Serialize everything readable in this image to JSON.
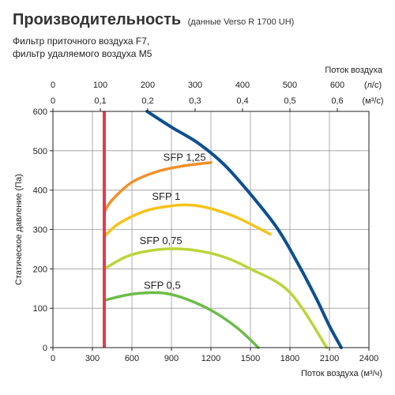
{
  "header": {
    "title": "Производительность",
    "note": "(данные Verso R 1700 UH)",
    "subtitle_line1": "Фильтр приточного воздуха F7,",
    "subtitle_line2": "фильтр удаляемого воздуха M5"
  },
  "chart_data": {
    "type": "line",
    "title": "Производительность",
    "xlabel": "Поток воздуха (м³/ч)",
    "ylabel": "Статическое давление (Па)",
    "xlim": [
      0,
      2400
    ],
    "ylim": [
      0,
      600
    ],
    "x_ticks": [
      "0",
      "300",
      "600",
      "900",
      "1200",
      "1500",
      "1800",
      "2100",
      "2400"
    ],
    "y_ticks": [
      "0",
      "100",
      "200",
      "300",
      "400",
      "500",
      "600"
    ],
    "top_axis": {
      "label": "Поток воздуха",
      "ls_ticks": [
        "0",
        "100",
        "200",
        "300",
        "400",
        "500",
        "600"
      ],
      "ls_unit": "(л/с)",
      "m3s_ticks": [
        "0",
        "0,1",
        "0,2",
        "0,3",
        "0,4",
        "0,5",
        "0,6"
      ],
      "m3s_unit": "(м³/с)"
    },
    "grid": true,
    "colors": {
      "max_curve": "#0d4f92",
      "min_line": "#e8384f",
      "sfp_125": "#f0902a",
      "sfp_1": "#f7c218",
      "sfp_075": "#bcd43a",
      "sfp_05": "#6cbc48"
    },
    "series": [
      {
        "key": "max_curve",
        "values": [
          [
            715,
            600
          ],
          [
            900,
            560
          ],
          [
            1100,
            520
          ],
          [
            1300,
            465
          ],
          [
            1500,
            390
          ],
          [
            1700,
            305
          ],
          [
            1850,
            220
          ],
          [
            2000,
            125
          ],
          [
            2100,
            55
          ],
          [
            2190,
            0
          ]
        ]
      },
      {
        "key": "min_line",
        "values": [
          [
            390,
            0
          ],
          [
            390,
            600
          ]
        ]
      },
      {
        "key": "sfp_125",
        "name": "SFP 1,25",
        "values": [
          [
            390,
            345
          ],
          [
            450,
            375
          ],
          [
            600,
            420
          ],
          [
            800,
            448
          ],
          [
            1000,
            462
          ],
          [
            1200,
            470
          ]
        ]
      },
      {
        "key": "sfp_1",
        "name": "SFP 1",
        "values": [
          [
            390,
            282
          ],
          [
            500,
            315
          ],
          [
            700,
            347
          ],
          [
            900,
            360
          ],
          [
            1050,
            362
          ],
          [
            1200,
            353
          ],
          [
            1400,
            330
          ],
          [
            1650,
            288
          ]
        ]
      },
      {
        "key": "sfp_075",
        "name": "SFP 0,75",
        "values": [
          [
            390,
            200
          ],
          [
            550,
            230
          ],
          [
            700,
            244
          ],
          [
            900,
            251
          ],
          [
            1100,
            246
          ],
          [
            1300,
            230
          ],
          [
            1500,
            200
          ],
          [
            1800,
            140
          ],
          [
            2080,
            0
          ]
        ]
      },
      {
        "key": "sfp_05",
        "name": "SFP 0,5",
        "values": [
          [
            390,
            120
          ],
          [
            550,
            133
          ],
          [
            700,
            139
          ],
          [
            850,
            138
          ],
          [
            1000,
            125
          ],
          [
            1200,
            95
          ],
          [
            1400,
            50
          ],
          [
            1560,
            0
          ]
        ]
      }
    ]
  }
}
